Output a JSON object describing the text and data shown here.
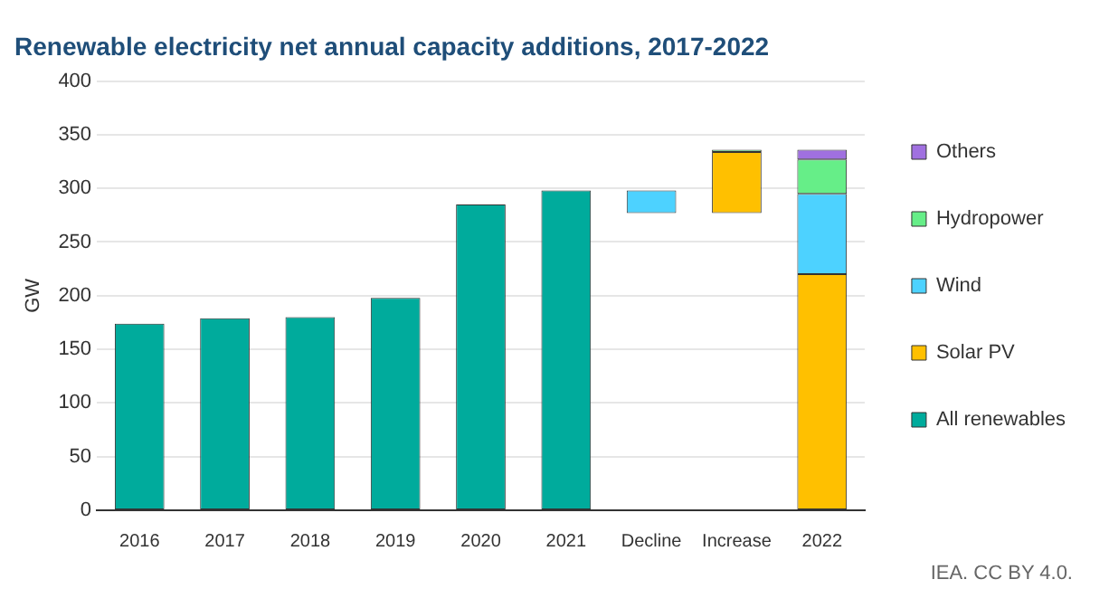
{
  "chart_data": {
    "type": "bar",
    "title": "Renewable electricity net annual capacity additions, 2017-2022",
    "ylabel": "GW",
    "categories": [
      "2016",
      "2017",
      "2018",
      "2019",
      "2020",
      "2021",
      "Decline",
      "Increase",
      "2022"
    ],
    "series": [
      {
        "name": "All renewables",
        "color": "#00ab9c",
        "values": [
          174,
          179,
          180,
          198,
          285,
          298,
          null,
          null,
          null
        ],
        "base": [
          0,
          0,
          0,
          0,
          0,
          0,
          null,
          null,
          null
        ]
      },
      {
        "name": "Solar PV",
        "color": "#ffc000",
        "values": [
          null,
          null,
          null,
          null,
          null,
          null,
          null,
          57,
          220
        ],
        "base": [
          null,
          null,
          null,
          null,
          null,
          null,
          null,
          277,
          0
        ]
      },
      {
        "name": "Wind",
        "color": "#4dd2ff",
        "values": [
          null,
          null,
          null,
          null,
          null,
          null,
          21,
          null,
          75
        ],
        "base": [
          null,
          null,
          null,
          null,
          null,
          null,
          277,
          null,
          220
        ]
      },
      {
        "name": "Hydropower",
        "color": "#66ee88",
        "values": [
          null,
          null,
          null,
          null,
          null,
          null,
          null,
          2,
          32
        ],
        "base": [
          null,
          null,
          null,
          null,
          null,
          null,
          null,
          334,
          295
        ]
      },
      {
        "name": "Others",
        "color": "#a070e0",
        "values": [
          null,
          null,
          null,
          null,
          null,
          null,
          null,
          null,
          9
        ],
        "base": [
          null,
          null,
          null,
          null,
          null,
          null,
          null,
          null,
          327
        ]
      }
    ],
    "ylim": [
      0,
      400
    ],
    "yticks": [
      0,
      50,
      100,
      150,
      200,
      250,
      300,
      350,
      400
    ],
    "grid": "y",
    "legend": "right",
    "annotations": [
      "IEA. CC BY 4.0."
    ]
  }
}
